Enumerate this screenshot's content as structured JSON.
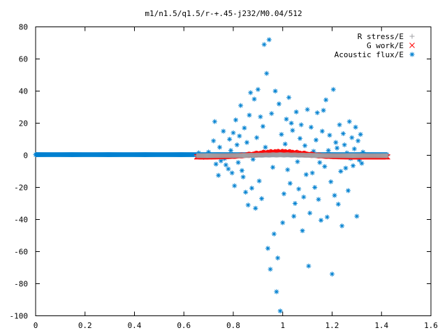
{
  "chart_data": {
    "type": "scatter",
    "title": "m1/n1.5/q1.5/r-+.45-j232/M0.04/512",
    "xlabel": "",
    "ylabel": "",
    "xlim": [
      0,
      1.6
    ],
    "ylim": [
      -100,
      80
    ],
    "x_ticks": [
      0,
      0.2,
      0.4,
      0.6,
      0.8,
      1,
      1.2,
      1.4,
      1.6
    ],
    "y_ticks": [
      -100,
      -80,
      -60,
      -40,
      -20,
      0,
      20,
      40,
      60,
      80
    ],
    "grid": false,
    "legend_position": "top-right",
    "series": [
      {
        "name": "R stress/E",
        "marker": "plus",
        "color": "#a0a0a4",
        "generated": {
          "x_start": 0.652,
          "x_end": 1.425,
          "step": 0.0028,
          "shape": "bump",
          "center": 0.99,
          "width": 0.12,
          "amp": 0.6,
          "base": -0.25
        }
      },
      {
        "name": "G work/E",
        "marker": "cross",
        "color": "#ff0000",
        "generated": {
          "x_start": 0.652,
          "x_end": 1.425,
          "step": 0.0028,
          "shape": "bump",
          "center": 0.99,
          "width": 0.14,
          "amp": 3.4,
          "base": -1.0
        }
      },
      {
        "name": "Acoustic flux/E",
        "marker": "asterisk",
        "color": "#0080d0",
        "generated": {
          "x_start": 0.0,
          "x_end": 1.425,
          "step": 0.0028,
          "shape": "flat",
          "value": 0.4
        },
        "points": [
          [
            0.66,
            1.5
          ],
          [
            0.68,
            -1.2
          ],
          [
            0.7,
            2.0
          ],
          [
            0.72,
            9.0
          ],
          [
            0.725,
            21.0
          ],
          [
            0.73,
            -5.5
          ],
          [
            0.74,
            -12.5
          ],
          [
            0.745,
            5.0
          ],
          [
            0.75,
            -3.5
          ],
          [
            0.76,
            15.0
          ],
          [
            0.765,
            -2.0
          ],
          [
            0.77,
            -6.0
          ],
          [
            0.78,
            -8.5
          ],
          [
            0.785,
            10.0
          ],
          [
            0.79,
            3.0
          ],
          [
            0.795,
            -11.0
          ],
          [
            0.8,
            14.0
          ],
          [
            0.805,
            -19.0
          ],
          [
            0.81,
            22.0
          ],
          [
            0.815,
            6.5
          ],
          [
            0.82,
            -4.5
          ],
          [
            0.825,
            12.0
          ],
          [
            0.83,
            31.0
          ],
          [
            0.835,
            -9.5
          ],
          [
            0.84,
            -13.5
          ],
          [
            0.845,
            17.0
          ],
          [
            0.85,
            -23.0
          ],
          [
            0.855,
            8.0
          ],
          [
            0.86,
            -31.0
          ],
          [
            0.865,
            25.0
          ],
          [
            0.87,
            39.0
          ],
          [
            0.875,
            -20.5
          ],
          [
            0.88,
            -2.5
          ],
          [
            0.885,
            35.0
          ],
          [
            0.89,
            -33.0
          ],
          [
            0.895,
            11.0
          ],
          [
            0.9,
            41.0
          ],
          [
            0.905,
            -16.0
          ],
          [
            0.91,
            24.0
          ],
          [
            0.915,
            -27.0
          ],
          [
            0.92,
            18.0
          ],
          [
            0.925,
            69.0
          ],
          [
            0.93,
            5.0
          ],
          [
            0.935,
            51.0
          ],
          [
            0.94,
            -58.0
          ],
          [
            0.945,
            72.0
          ],
          [
            0.95,
            -71.0
          ],
          [
            0.955,
            26.0
          ],
          [
            0.96,
            -7.5
          ],
          [
            0.965,
            -49.0
          ],
          [
            0.97,
            40.0
          ],
          [
            0.975,
            -85.0
          ],
          [
            0.98,
            -64.0
          ],
          [
            0.985,
            32.0
          ],
          [
            0.99,
            -97.0
          ],
          [
            0.995,
            13.0
          ],
          [
            1.0,
            -42.0
          ],
          [
            1.005,
            -24.0
          ],
          [
            1.01,
            7.0
          ],
          [
            1.015,
            22.5
          ],
          [
            1.02,
            -9.0
          ],
          [
            1.025,
            36.0
          ],
          [
            1.03,
            -17.5
          ],
          [
            1.035,
            20.0
          ],
          [
            1.04,
            15.5
          ],
          [
            1.045,
            -38.0
          ],
          [
            1.05,
            -30.0
          ],
          [
            1.055,
            27.0
          ],
          [
            1.06,
            -4.0
          ],
          [
            1.065,
            -21.0
          ],
          [
            1.07,
            10.5
          ],
          [
            1.075,
            19.0
          ],
          [
            1.08,
            -47.0
          ],
          [
            1.085,
            -26.0
          ],
          [
            1.09,
            6.0
          ],
          [
            1.095,
            -12.0
          ],
          [
            1.1,
            28.5
          ],
          [
            1.105,
            -69.0
          ],
          [
            1.11,
            -36.0
          ],
          [
            1.115,
            17.5
          ],
          [
            1.12,
            -11.0
          ],
          [
            1.125,
            2.5
          ],
          [
            1.13,
            -20.0
          ],
          [
            1.135,
            9.5
          ],
          [
            1.14,
            26.5
          ],
          [
            1.145,
            -27.5
          ],
          [
            1.15,
            -4.5
          ],
          [
            1.155,
            -40.5
          ],
          [
            1.16,
            15.0
          ],
          [
            1.165,
            28.0
          ],
          [
            1.17,
            -7.0
          ],
          [
            1.175,
            34.5
          ],
          [
            1.18,
            -38.5
          ],
          [
            1.185,
            3.0
          ],
          [
            1.19,
            12.5
          ],
          [
            1.195,
            -16.5
          ],
          [
            1.2,
            -74.0
          ],
          [
            1.205,
            41.0
          ],
          [
            1.21,
            -25.0
          ],
          [
            1.215,
            8.0
          ],
          [
            1.22,
            4.5
          ],
          [
            1.225,
            -30.5
          ],
          [
            1.23,
            19.0
          ],
          [
            1.235,
            -10.0
          ],
          [
            1.24,
            -44.0
          ],
          [
            1.245,
            13.5
          ],
          [
            1.25,
            6.5
          ],
          [
            1.255,
            -8.0
          ],
          [
            1.26,
            1.5
          ],
          [
            1.265,
            -22.0
          ],
          [
            1.27,
            21.0
          ],
          [
            1.275,
            -2.0
          ],
          [
            1.28,
            11.0
          ],
          [
            1.285,
            -6.5
          ],
          [
            1.29,
            4.0
          ],
          [
            1.295,
            17.5
          ],
          [
            1.3,
            -38.0
          ],
          [
            1.305,
            9.0
          ],
          [
            1.31,
            -3.0
          ],
          [
            1.315,
            13.0
          ],
          [
            1.32,
            -5.0
          ],
          [
            1.325,
            2.0
          ]
        ]
      }
    ]
  }
}
